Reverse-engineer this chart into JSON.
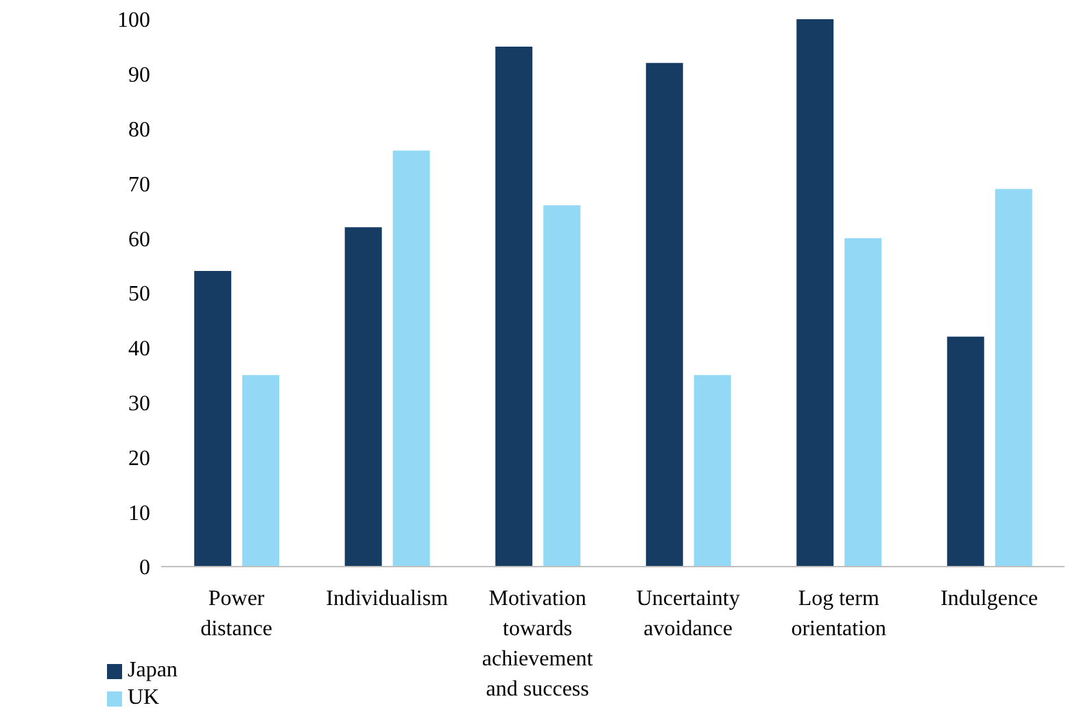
{
  "chart_data": {
    "type": "bar",
    "categories": [
      "Power distance",
      "Individualism",
      "Motivation towards achievement and success",
      "Uncertainty avoidance",
      "Log term orientation",
      "Indulgence"
    ],
    "series": [
      {
        "name": "Japan",
        "color": "#173c63",
        "values": [
          54,
          62,
          95,
          92,
          100,
          42
        ]
      },
      {
        "name": "UK",
        "color": "#93d9f5",
        "values": [
          35,
          76,
          66,
          35,
          60,
          69
        ]
      }
    ],
    "ylim": [
      0,
      100
    ],
    "yticks": [
      0,
      10,
      20,
      30,
      40,
      50,
      60,
      70,
      80,
      90,
      100
    ],
    "grid": false,
    "legend": "bottom left"
  }
}
